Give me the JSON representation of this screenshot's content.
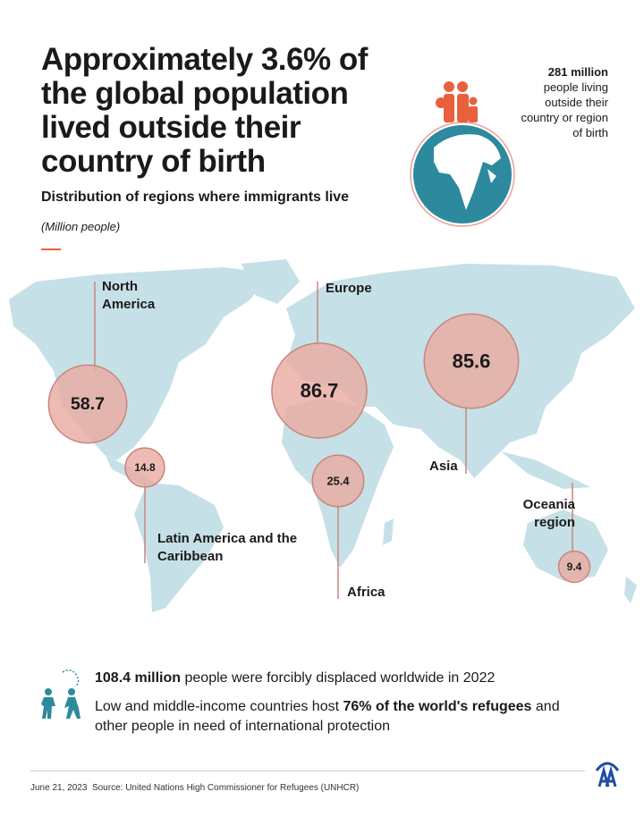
{
  "header": {
    "title": "Approximately 3.6% of the global population lived outside their country of birth",
    "subtitle": "Distribution of regions where immigrants live",
    "unit": "(Million people)"
  },
  "stat": {
    "value": "281 million",
    "text": "people living outside their country or region of birth"
  },
  "colors": {
    "map": "#c6e0e7",
    "bubble": "#e9aaa1",
    "bubble_stroke": "#c9867b",
    "accent": "#e8603c",
    "teal": "#2d8a9e",
    "logo": "#1f4ea3"
  },
  "chart_data": {
    "type": "bubble-map",
    "unit": "(Million people)",
    "regions": [
      {
        "name": "North America",
        "value": 58.7,
        "label": "58.7"
      },
      {
        "name": "Europe",
        "value": 86.7,
        "label": "86.7"
      },
      {
        "name": "Asia",
        "value": 85.6,
        "label": "85.6"
      },
      {
        "name": "Latin America and the Caribbean",
        "value": 14.8,
        "label": "14.8"
      },
      {
        "name": "Africa",
        "value": 25.4,
        "label": "25.4"
      },
      {
        "name": "Oceania region",
        "value": 9.4,
        "label": "9.4"
      }
    ]
  },
  "facts": {
    "f1_bold": "108.4 million",
    "f1_rest": " people were forcibly displaced worldwide in 2022",
    "f2_pre": "Low and middle-income countries host ",
    "f2_bold": "76% of the world's refugees",
    "f2_post": " and other people in need of international protection"
  },
  "footer": {
    "date": "June 21, 2023",
    "source": "Source: United Nations High Commissioner for Refugees (UNHCR)"
  },
  "icons": {
    "globe": "globe-family-icon",
    "people": "refugees-walking-icon",
    "logo": "anadolu-agency-logo"
  }
}
